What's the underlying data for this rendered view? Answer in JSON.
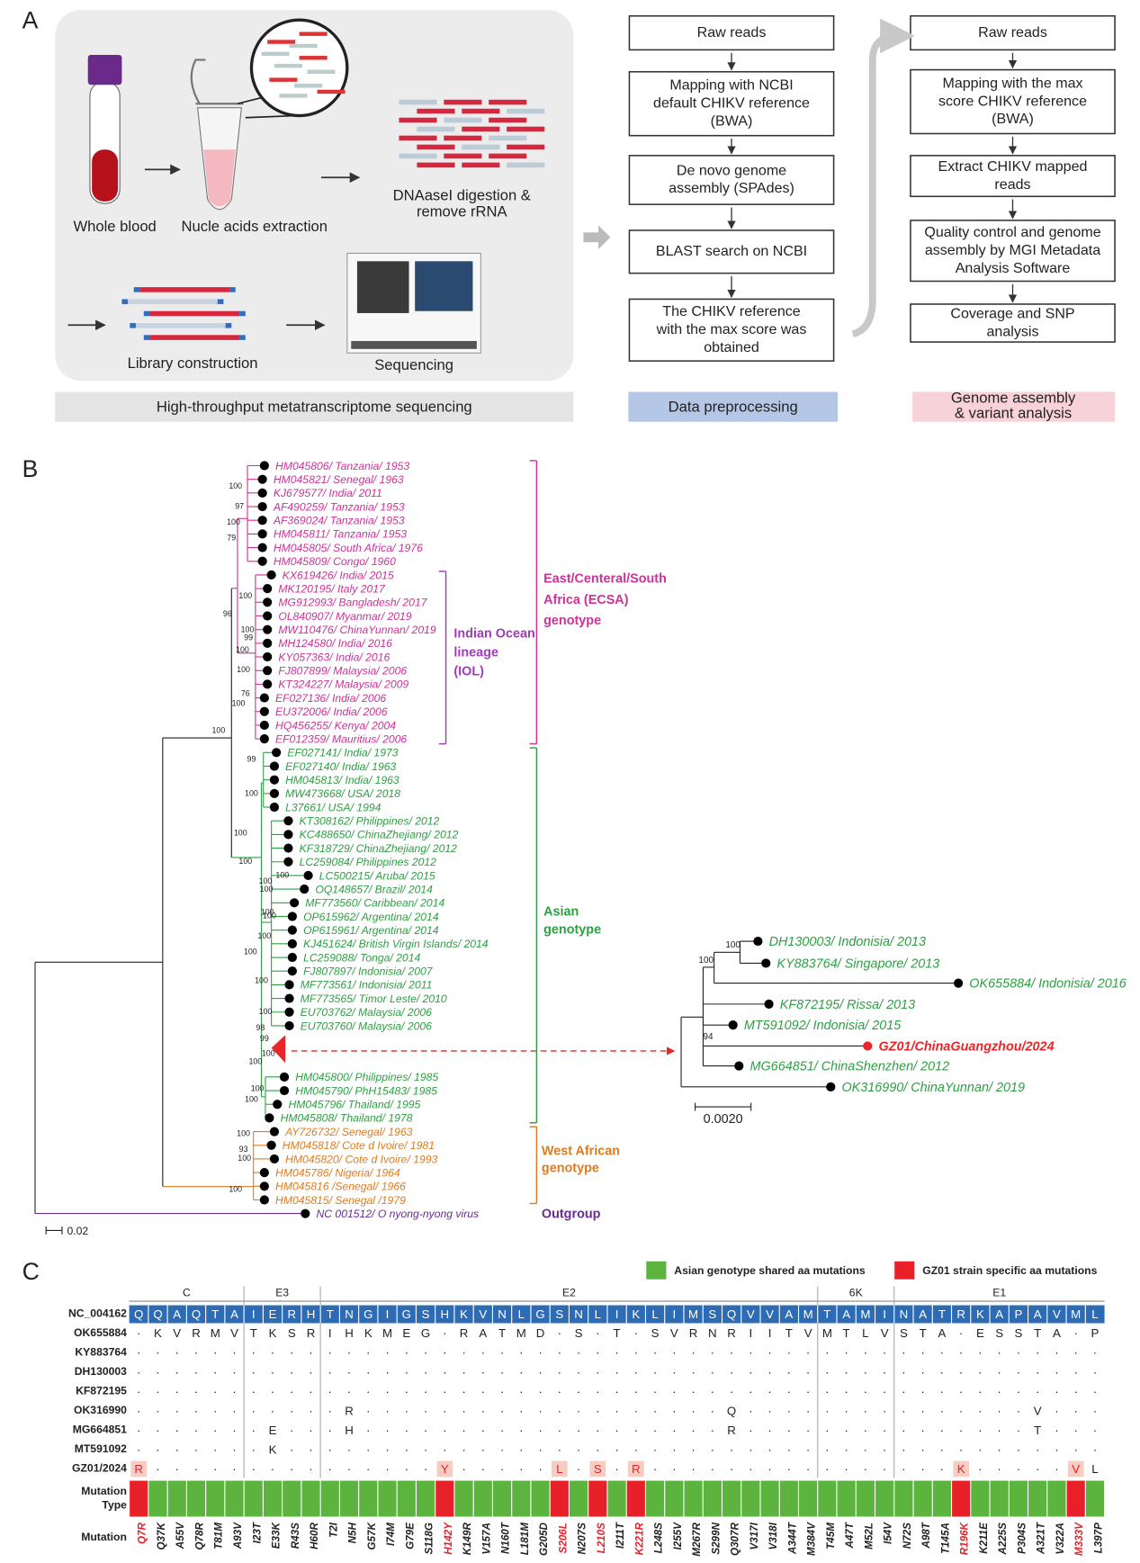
{
  "panel_a": {
    "label": "A",
    "workflow": {
      "whole_blood": "Whole blood",
      "extraction": "Nucle acids extraction",
      "digestion": [
        "DNAaseI digestion &",
        "remove rRNA"
      ],
      "library": "Library construction",
      "sequencing": "Sequencing",
      "banner": "High-throughput metatranscriptome sequencing"
    },
    "preprocessing": {
      "steps": [
        [
          "Raw reads"
        ],
        [
          "Mapping with NCBI",
          "default CHIKV reference",
          "(BWA)"
        ],
        [
          "De novo genome",
          "assembly  (SPAdes)"
        ],
        [
          "BLAST search on NCBI"
        ],
        [
          "The CHIKV reference",
          "with the max score was",
          "obtained"
        ]
      ],
      "banner": "Data preprocessing"
    },
    "assembly": {
      "steps": [
        [
          "Raw reads"
        ],
        [
          "Mapping with the max",
          "score CHIKV reference",
          "(BWA)"
        ],
        [
          "Extract CHIKV mapped",
          "reads"
        ],
        [
          "Quality control and genome",
          "assembly by MGI Metadata",
          "Analysis Software"
        ],
        [
          "Coverage and SNP",
          "analysis"
        ]
      ],
      "banner": [
        "Genome assembly",
        "& variant analysis"
      ]
    }
  },
  "panel_b": {
    "label": "B",
    "groups": [
      {
        "color": "#cc3399",
        "leaves": [
          "HM045806/ Tanzania/ 1953",
          "HM045821/ Senegal/ 1963",
          "KJ679577/ India/ 2011",
          "AF490259/ Tanzania/ 1953",
          "AF369024/ Tanzania/ 1953",
          "HM045811/ Tanzania/ 1953",
          "HM045805/ South Africa/ 1976",
          "HM045809/ Congo/ 1960",
          "KX619426/ India/ 2015",
          "MK120195/ Italy 2017",
          "MG912993/ Bangladesh/ 2017",
          "OL840907/ Myanmar/ 2019",
          "MW110476/ ChinaYunnan/ 2019",
          "MH124580/ India/ 2016",
          "KY057363/ India/ 2016",
          "FJ807899/ Malaysia/ 2006",
          "KT324227/ Malaysia/ 2009",
          "EF027136/ India/ 2006",
          "EU372006/ India/ 2006",
          "HQ456255/ Kenya/ 2004",
          "EF012359/ Mauritius/ 2006"
        ]
      },
      {
        "color": "#2ea043",
        "leaves": [
          "EF027141/ India/ 1973",
          "EF027140/ India/ 1963",
          "HM045813/ India/ 1963",
          "MW473668/ USA/ 2018",
          "L37661/ USA/ 1994",
          "KT308162/ Philippines/ 2012",
          "KC488650/ ChinaZhejiang/ 2012",
          "KF318729/ ChinaZhejiang/ 2012",
          "LC259084/ Philippines 2012",
          "LC500215/ Aruba/ 2015",
          "OQ148657/ Brazil/ 2014",
          "MF773560/ Caribbean/ 2014",
          "OP615962/ Argentina/ 2014",
          "OP615961/ Argentina/ 2014",
          "KJ451624/ British Virgin Islands/ 2014",
          "LC259088/ Tonga/ 2014",
          "FJ807897/ Indonisia/ 2007",
          "MF773561/ Indonisia/ 2011",
          "MF773565/ Timor Leste/ 2010",
          "EU703762/ Malaysia/ 2006",
          "EU703760/ Malaysia/ 2006",
          "HM045800/ Philippines/ 1985",
          "HM045790/ PhH15483/ 1985",
          "HM045796/ Thailand/ 1995",
          "HM045808/ Thailand/ 1978"
        ]
      },
      {
        "color": "#e07b1f",
        "leaves": [
          "AY726732/ Senegal/ 1963",
          "HM045818/ Cote d Ivoire/ 1981",
          "HM045820/ Cote d Ivoire/ 1993",
          "HM045786/ Nigeria/ 1964",
          "HM045816 /Senegal/ 1966",
          "HM045815/ Senegal /1979"
        ]
      },
      {
        "color": "#6a2c91",
        "leaves": [
          "NC 001512/ O nyong-nyong virus"
        ]
      }
    ],
    "clade_labels": [
      {
        "lines": [
          "East/Centeral/South",
          "Africa  (ECSA)",
          "genotype"
        ],
        "color": "#cc3399"
      },
      {
        "lines": [
          "Indian Ocean",
          "lineage",
          "(IOL)"
        ],
        "color": "#a03cb4"
      },
      {
        "lines": [
          "Asian",
          "genotype"
        ],
        "color": "#2ea043"
      },
      {
        "lines": [
          "West African",
          "genotype"
        ],
        "color": "#e07b1f"
      },
      {
        "lines": [
          "Outgroup"
        ],
        "color": "#6a2c91"
      }
    ],
    "bootstrap": [
      100,
      97,
      100,
      79,
      96,
      100,
      100,
      99,
      100,
      100,
      76,
      100,
      100,
      99,
      100,
      100,
      100,
      100,
      100,
      100,
      100,
      100,
      100,
      100,
      100,
      100,
      98,
      99,
      100,
      100,
      100,
      100,
      100,
      93,
      100,
      100
    ],
    "scale": "0.02",
    "inset": {
      "leaves": [
        {
          "name": "DH130003/ Indonisia/ 2013",
          "color": "#2ea043",
          "bold": false
        },
        {
          "name": "KY883764/ Singapore/ 2013",
          "color": "#2ea043",
          "bold": false
        },
        {
          "name": "OK655884/ Indonisia/ 2016",
          "color": "#2ea043",
          "bold": false
        },
        {
          "name": "KF872195/ Rissa/ 2013",
          "color": "#2ea043",
          "bold": false
        },
        {
          "name": "MT591092/ Indonisia/ 2015",
          "color": "#2ea043",
          "bold": false
        },
        {
          "name": "GZ01/ChinaGuangzhou/2024",
          "color": "#e8262a",
          "bold": true
        },
        {
          "name": "MG664851/ ChinaShenzhen/ 2012",
          "color": "#2ea043",
          "bold": false
        },
        {
          "name": "OK316990/ ChinaYunnan/ 2019",
          "color": "#2ea043",
          "bold": false
        }
      ],
      "bootstrap": [
        100,
        100,
        94
      ],
      "scale": "0.0020"
    }
  },
  "panel_c": {
    "label": "C",
    "legend": [
      {
        "name": "Asian genotype shared aa mutations",
        "color": "#5cb33e"
      },
      {
        "name": "GZ01 strain specific aa mutations",
        "color": "#e8202a"
      }
    ],
    "genes": [
      "C",
      "E3",
      "E2",
      "6K",
      "E1"
    ],
    "reference": {
      "name": "NC_004162",
      "residues": [
        "Q",
        "Q",
        "A",
        "Q",
        "T",
        "A",
        "I",
        "E",
        "R",
        "H",
        "T",
        "N",
        "G",
        "I",
        "G",
        "S",
        "H",
        "K",
        "V",
        "N",
        "L",
        "G",
        "S",
        "N",
        "L",
        "I",
        "K",
        "L",
        "I",
        "M",
        "S",
        "Q",
        "V",
        "V",
        "A",
        "M",
        "T",
        "A",
        "M",
        "I",
        "N",
        "A",
        "T",
        "R",
        "K",
        "A",
        "P",
        "A",
        "V",
        "M",
        "L"
      ]
    },
    "rows": [
      {
        "name": "OK655884",
        "residues": [
          "·",
          "K",
          "V",
          "R",
          "M",
          "V",
          "T",
          "K",
          "S",
          "R",
          "I",
          "H",
          "K",
          "M",
          "E",
          "G",
          "·",
          "R",
          "A",
          "T",
          "M",
          "D",
          "·",
          "S",
          "·",
          "T",
          "·",
          "S",
          "V",
          "R",
          "N",
          "R",
          "I",
          "I",
          "T",
          "V",
          "M",
          "T",
          "L",
          "V",
          "S",
          "T",
          "A",
          "·",
          "E",
          "S",
          "S",
          "T",
          "A",
          "·",
          "P"
        ]
      },
      {
        "name": "KY883764",
        "residues": [
          "·",
          "·",
          "·",
          "·",
          "·",
          "·",
          "·",
          "·",
          "·",
          "·",
          "·",
          "·",
          "·",
          "·",
          "·",
          "·",
          "·",
          "·",
          "·",
          "·",
          "·",
          "·",
          "·",
          "·",
          "·",
          "·",
          "·",
          "·",
          "·",
          "·",
          "·",
          "·",
          "·",
          "·",
          "·",
          "·",
          "·",
          "·",
          "·",
          "·",
          "·",
          "·",
          "·",
          "·",
          "·",
          "·",
          "·",
          "·",
          "·",
          "·",
          "·"
        ]
      },
      {
        "name": "DH130003",
        "residues": [
          "·",
          "·",
          "·",
          "·",
          "·",
          "·",
          "·",
          "·",
          "·",
          "·",
          "·",
          "·",
          "·",
          "·",
          "·",
          "·",
          "·",
          "·",
          "·",
          "·",
          "·",
          "·",
          "·",
          "·",
          "·",
          "·",
          "·",
          "·",
          "·",
          "·",
          "·",
          "·",
          "·",
          "·",
          "·",
          "·",
          "·",
          "·",
          "·",
          "·",
          "·",
          "·",
          "·",
          "·",
          "·",
          "·",
          "·",
          "·",
          "·",
          "·",
          "·"
        ]
      },
      {
        "name": "KF872195",
        "residues": [
          "·",
          "·",
          "·",
          "·",
          "·",
          "·",
          "·",
          "·",
          "·",
          "·",
          "·",
          "·",
          "·",
          "·",
          "·",
          "·",
          "·",
          "·",
          "·",
          "·",
          "·",
          "·",
          "·",
          "·",
          "·",
          "·",
          "·",
          "·",
          "·",
          "·",
          "·",
          "·",
          "·",
          "·",
          "·",
          "·",
          "·",
          "·",
          "·",
          "·",
          "·",
          "·",
          "·",
          "·",
          "·",
          "·",
          "·",
          "·",
          "·",
          "·",
          "·"
        ]
      },
      {
        "name": "OK316990",
        "residues": [
          "·",
          "·",
          "·",
          "·",
          "·",
          "·",
          "·",
          "·",
          "·",
          "·",
          "·",
          "R",
          "·",
          "·",
          "·",
          "·",
          "·",
          "·",
          "·",
          "·",
          "·",
          "·",
          "·",
          "·",
          "·",
          "·",
          "·",
          "·",
          "·",
          "·",
          "·",
          "Q",
          "·",
          "·",
          "·",
          "·",
          "·",
          "·",
          "·",
          "·",
          "·",
          "·",
          "·",
          "·",
          "·",
          "·",
          "·",
          "V",
          "·",
          "·",
          "·"
        ]
      },
      {
        "name": "MG664851",
        "residues": [
          "·",
          "·",
          "·",
          "·",
          "·",
          "·",
          "·",
          "E",
          "·",
          "·",
          "·",
          "H",
          "·",
          "·",
          "·",
          "·",
          "·",
          "·",
          "·",
          "·",
          "·",
          "·",
          "·",
          "·",
          "·",
          "·",
          "·",
          "·",
          "·",
          "·",
          "·",
          "R",
          "·",
          "·",
          "·",
          "·",
          "·",
          "·",
          "·",
          "·",
          "·",
          "·",
          "·",
          "·",
          "·",
          "·",
          "·",
          "T",
          "·",
          "·",
          "·"
        ]
      },
      {
        "name": "MT591092",
        "residues": [
          "·",
          "·",
          "·",
          "·",
          "·",
          "·",
          "·",
          "K",
          "·",
          "·",
          "·",
          "·",
          "·",
          "·",
          "·",
          "·",
          "·",
          "·",
          "·",
          "·",
          "·",
          "·",
          "·",
          "·",
          "·",
          "·",
          "·",
          "·",
          "·",
          "·",
          "·",
          "·",
          "·",
          "·",
          "·",
          "·",
          "·",
          "·",
          "·",
          "·",
          "·",
          "·",
          "·",
          "·",
          "·",
          "·",
          "·",
          "·",
          "·",
          "·",
          "·"
        ]
      },
      {
        "name": "GZ01/2024",
        "residues": [
          "R",
          "·",
          "·",
          "·",
          "·",
          "·",
          "·",
          "·",
          "·",
          "·",
          "·",
          "·",
          "·",
          "·",
          "·",
          "·",
          "Y",
          "·",
          "·",
          "·",
          "·",
          "·",
          "L",
          "·",
          "S",
          "·",
          "R",
          "·",
          "·",
          "·",
          "·",
          "·",
          "·",
          "·",
          "·",
          "·",
          "·",
          "·",
          "·",
          "·",
          "·",
          "·",
          "·",
          "K",
          "·",
          "·",
          "·",
          "·",
          "·",
          "V",
          "L"
        ]
      }
    ],
    "type_label": [
      "Mutation",
      "Type"
    ],
    "mutation_type": [
      1,
      0,
      0,
      0,
      0,
      0,
      0,
      0,
      0,
      0,
      0,
      0,
      0,
      0,
      0,
      0,
      1,
      0,
      0,
      0,
      0,
      0,
      1,
      0,
      1,
      0,
      1,
      0,
      0,
      0,
      0,
      0,
      0,
      0,
      0,
      0,
      0,
      0,
      0,
      0,
      0,
      0,
      0,
      1,
      0,
      0,
      0,
      0,
      0,
      1,
      0
    ],
    "mutation_label": "Mutation",
    "mutations": [
      "Q7R",
      "Q37K",
      "A55V",
      "Q78R",
      "T81M",
      "A93V",
      "I23T",
      "E33K",
      "R43S",
      "H60R",
      "T2I",
      "N5H",
      "G57K",
      "I74M",
      "G79E",
      "S118G",
      "H142Y",
      "K149R",
      "V157A",
      "N160T",
      "L181M",
      "G205D",
      "S206L",
      "N207S",
      "L210S",
      "I211T",
      "K221R",
      "L248S",
      "I255V",
      "M267R",
      "S299N",
      "Q307R",
      "V317I",
      "V318I",
      "A344T",
      "M384V",
      "T45M",
      "A47T",
      "M52L",
      "I54V",
      "N72S",
      "A98T",
      "T145A",
      "R196K",
      "K211E",
      "A225S",
      "P304S",
      "A321T",
      "V322A",
      "M333V",
      "L397P"
    ]
  }
}
